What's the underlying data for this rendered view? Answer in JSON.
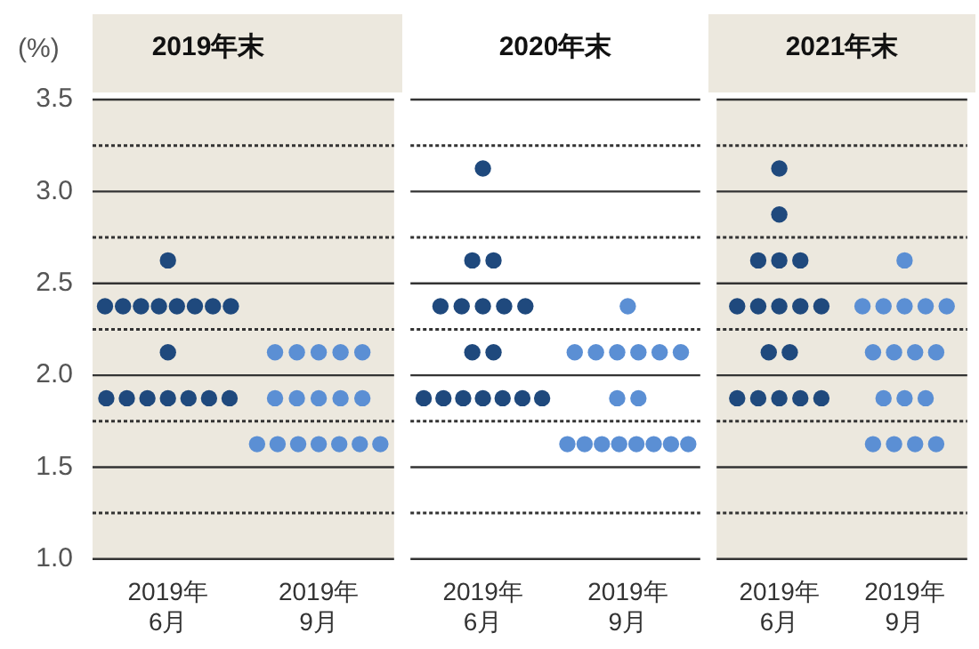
{
  "chart_data": [
    {
      "type": "scatter",
      "title": "2019年末",
      "ylabel": "(%)",
      "marker": "circle",
      "grid": true,
      "categories": [
        "2019年\n6月",
        "2019年\n9月"
      ],
      "ylim": [
        1.0,
        3.5
      ],
      "yticks": [
        {
          "value": 1,
          "label": "1.0"
        },
        {
          "value": 1.5,
          "label": "1.5"
        },
        {
          "value": 2,
          "label": "2.0"
        },
        {
          "value": 2.5,
          "label": "2.5"
        },
        {
          "value": 3,
          "label": "3.0"
        },
        {
          "value": 3.5,
          "label": "3.5"
        }
      ],
      "ref_lines": [
        {
          "axis": "y",
          "value": 1.25,
          "line_style": "dotted"
        },
        {
          "axis": "y",
          "value": 1.75,
          "line_style": "dotted"
        },
        {
          "axis": "y",
          "value": 2.25,
          "line_style": "dotted"
        },
        {
          "axis": "y",
          "value": 2.75,
          "line_style": "dotted"
        },
        {
          "axis": "y",
          "value": 3.25,
          "line_style": "dotted"
        }
      ],
      "bands": [
        {
          "axis": "x",
          "from": "2019年\n6月",
          "to": "2019年\n9月",
          "color": "#ece8de"
        }
      ],
      "series": [
        {
          "color": "#1f497d",
          "x": [
            "2019年\n6月",
            "2019年\n6月",
            "2019年\n6月",
            "2019年\n6月",
            "2019年\n6月",
            "2019年\n6月",
            "2019年\n6月",
            "2019年\n6月",
            "2019年\n6月",
            "2019年\n6月",
            "2019年\n6月",
            "2019年\n6月",
            "2019年\n6月",
            "2019年\n6月",
            "2019年\n6月",
            "2019年\n6月",
            "2019年\n6月"
          ],
          "values": [
            2.625,
            2.375,
            2.375,
            2.375,
            2.375,
            2.375,
            2.375,
            2.375,
            2.375,
            2.125,
            1.875,
            1.875,
            1.875,
            1.875,
            1.875,
            1.875,
            1.875
          ]
        },
        {
          "color": "#5b8fd4",
          "x": [
            "2019年\n9月",
            "2019年\n9月",
            "2019年\n9月",
            "2019年\n9月",
            "2019年\n9月",
            "2019年\n9月",
            "2019年\n9月",
            "2019年\n9月",
            "2019年\n9月",
            "2019年\n9月",
            "2019年\n9月",
            "2019年\n9月",
            "2019年\n9月",
            "2019年\n9月",
            "2019年\n9月",
            "2019年\n9月",
            "2019年\n9月"
          ],
          "values": [
            2.125,
            2.125,
            2.125,
            2.125,
            2.125,
            1.875,
            1.875,
            1.875,
            1.875,
            1.875,
            1.625,
            1.625,
            1.625,
            1.625,
            1.625,
            1.625,
            1.625
          ]
        }
      ]
    },
    {
      "type": "scatter",
      "title": "2020年末",
      "marker": "circle",
      "grid": true,
      "tick_labels": "x",
      "categories": [
        "2019年\n6月",
        "2019年\n9月"
      ],
      "ylim": [
        1.0,
        3.5
      ],
      "yticks": [
        1,
        1.5,
        2,
        2.5,
        3,
        3.5
      ],
      "ref_lines": [
        {
          "axis": "y",
          "value": 1.25,
          "line_style": "dotted"
        },
        {
          "axis": "y",
          "value": 1.75,
          "line_style": "dotted"
        },
        {
          "axis": "y",
          "value": 2.25,
          "line_style": "dotted"
        },
        {
          "axis": "y",
          "value": 2.75,
          "line_style": "dotted"
        },
        {
          "axis": "y",
          "value": 3.25,
          "line_style": "dotted"
        }
      ],
      "series": [
        {
          "color": "#1f497d",
          "x": [
            "2019年\n6月",
            "2019年\n6月",
            "2019年\n6月",
            "2019年\n6月",
            "2019年\n6月",
            "2019年\n6月",
            "2019年\n6月",
            "2019年\n6月",
            "2019年\n6月",
            "2019年\n6月",
            "2019年\n6月",
            "2019年\n6月",
            "2019年\n6月",
            "2019年\n6月",
            "2019年\n6月",
            "2019年\n6月",
            "2019年\n6月"
          ],
          "values": [
            3.125,
            2.625,
            2.625,
            2.375,
            2.375,
            2.375,
            2.375,
            2.375,
            2.125,
            2.125,
            1.875,
            1.875,
            1.875,
            1.875,
            1.875,
            1.875,
            1.875
          ]
        },
        {
          "color": "#5b8fd4",
          "x": [
            "2019年\n9月",
            "2019年\n9月",
            "2019年\n9月",
            "2019年\n9月",
            "2019年\n9月",
            "2019年\n9月",
            "2019年\n9月",
            "2019年\n9月",
            "2019年\n9月",
            "2019年\n9月",
            "2019年\n9月",
            "2019年\n9月",
            "2019年\n9月",
            "2019年\n9月",
            "2019年\n9月",
            "2019年\n9月",
            "2019年\n9月"
          ],
          "values": [
            2.375,
            2.125,
            2.125,
            2.125,
            2.125,
            2.125,
            2.125,
            1.875,
            1.875,
            1.625,
            1.625,
            1.625,
            1.625,
            1.625,
            1.625,
            1.625,
            1.625
          ]
        }
      ]
    },
    {
      "type": "scatter",
      "title": "2021年末",
      "marker": "circle",
      "grid": true,
      "tick_labels": "x",
      "categories": [
        "2019年\n6月",
        "2019年\n9月"
      ],
      "ylim": [
        1.0,
        3.5
      ],
      "yticks": [
        1,
        1.5,
        2,
        2.5,
        3,
        3.5
      ],
      "ref_lines": [
        {
          "axis": "y",
          "value": 1.25,
          "line_style": "dotted"
        },
        {
          "axis": "y",
          "value": 1.75,
          "line_style": "dotted"
        },
        {
          "axis": "y",
          "value": 2.25,
          "line_style": "dotted"
        },
        {
          "axis": "y",
          "value": 2.75,
          "line_style": "dotted"
        },
        {
          "axis": "y",
          "value": 3.25,
          "line_style": "dotted"
        }
      ],
      "bands": [
        {
          "axis": "x",
          "from": "2019年\n6月",
          "to": "2019年\n9月",
          "color": "#ece8de"
        }
      ],
      "series": [
        {
          "color": "#1f497d",
          "x": [
            "2019年\n6月",
            "2019年\n6月",
            "2019年\n6月",
            "2019年\n6月",
            "2019年\n6月",
            "2019年\n6月",
            "2019年\n6月",
            "2019年\n6月",
            "2019年\n6月",
            "2019年\n6月",
            "2019年\n6月",
            "2019年\n6月",
            "2019年\n6月",
            "2019年\n6月",
            "2019年\n6月",
            "2019年\n6月",
            "2019年\n6月"
          ],
          "values": [
            3.125,
            2.875,
            2.625,
            2.625,
            2.625,
            2.375,
            2.375,
            2.375,
            2.375,
            2.375,
            2.125,
            2.125,
            1.875,
            1.875,
            1.875,
            1.875,
            1.875
          ]
        },
        {
          "color": "#5b8fd4",
          "x": [
            "2019年\n9月",
            "2019年\n9月",
            "2019年\n9月",
            "2019年\n9月",
            "2019年\n9月",
            "2019年\n9月",
            "2019年\n9月",
            "2019年\n9月",
            "2019年\n9月",
            "2019年\n9月",
            "2019年\n9月",
            "2019年\n9月",
            "2019年\n9月",
            "2019年\n9月",
            "2019年\n9月",
            "2019年\n9月",
            "2019年\n9月"
          ],
          "values": [
            2.625,
            2.375,
            2.375,
            2.375,
            2.375,
            2.375,
            2.125,
            2.125,
            2.125,
            2.125,
            1.875,
            1.875,
            1.875,
            1.625,
            1.625,
            1.625,
            1.625
          ]
        }
      ]
    }
  ]
}
